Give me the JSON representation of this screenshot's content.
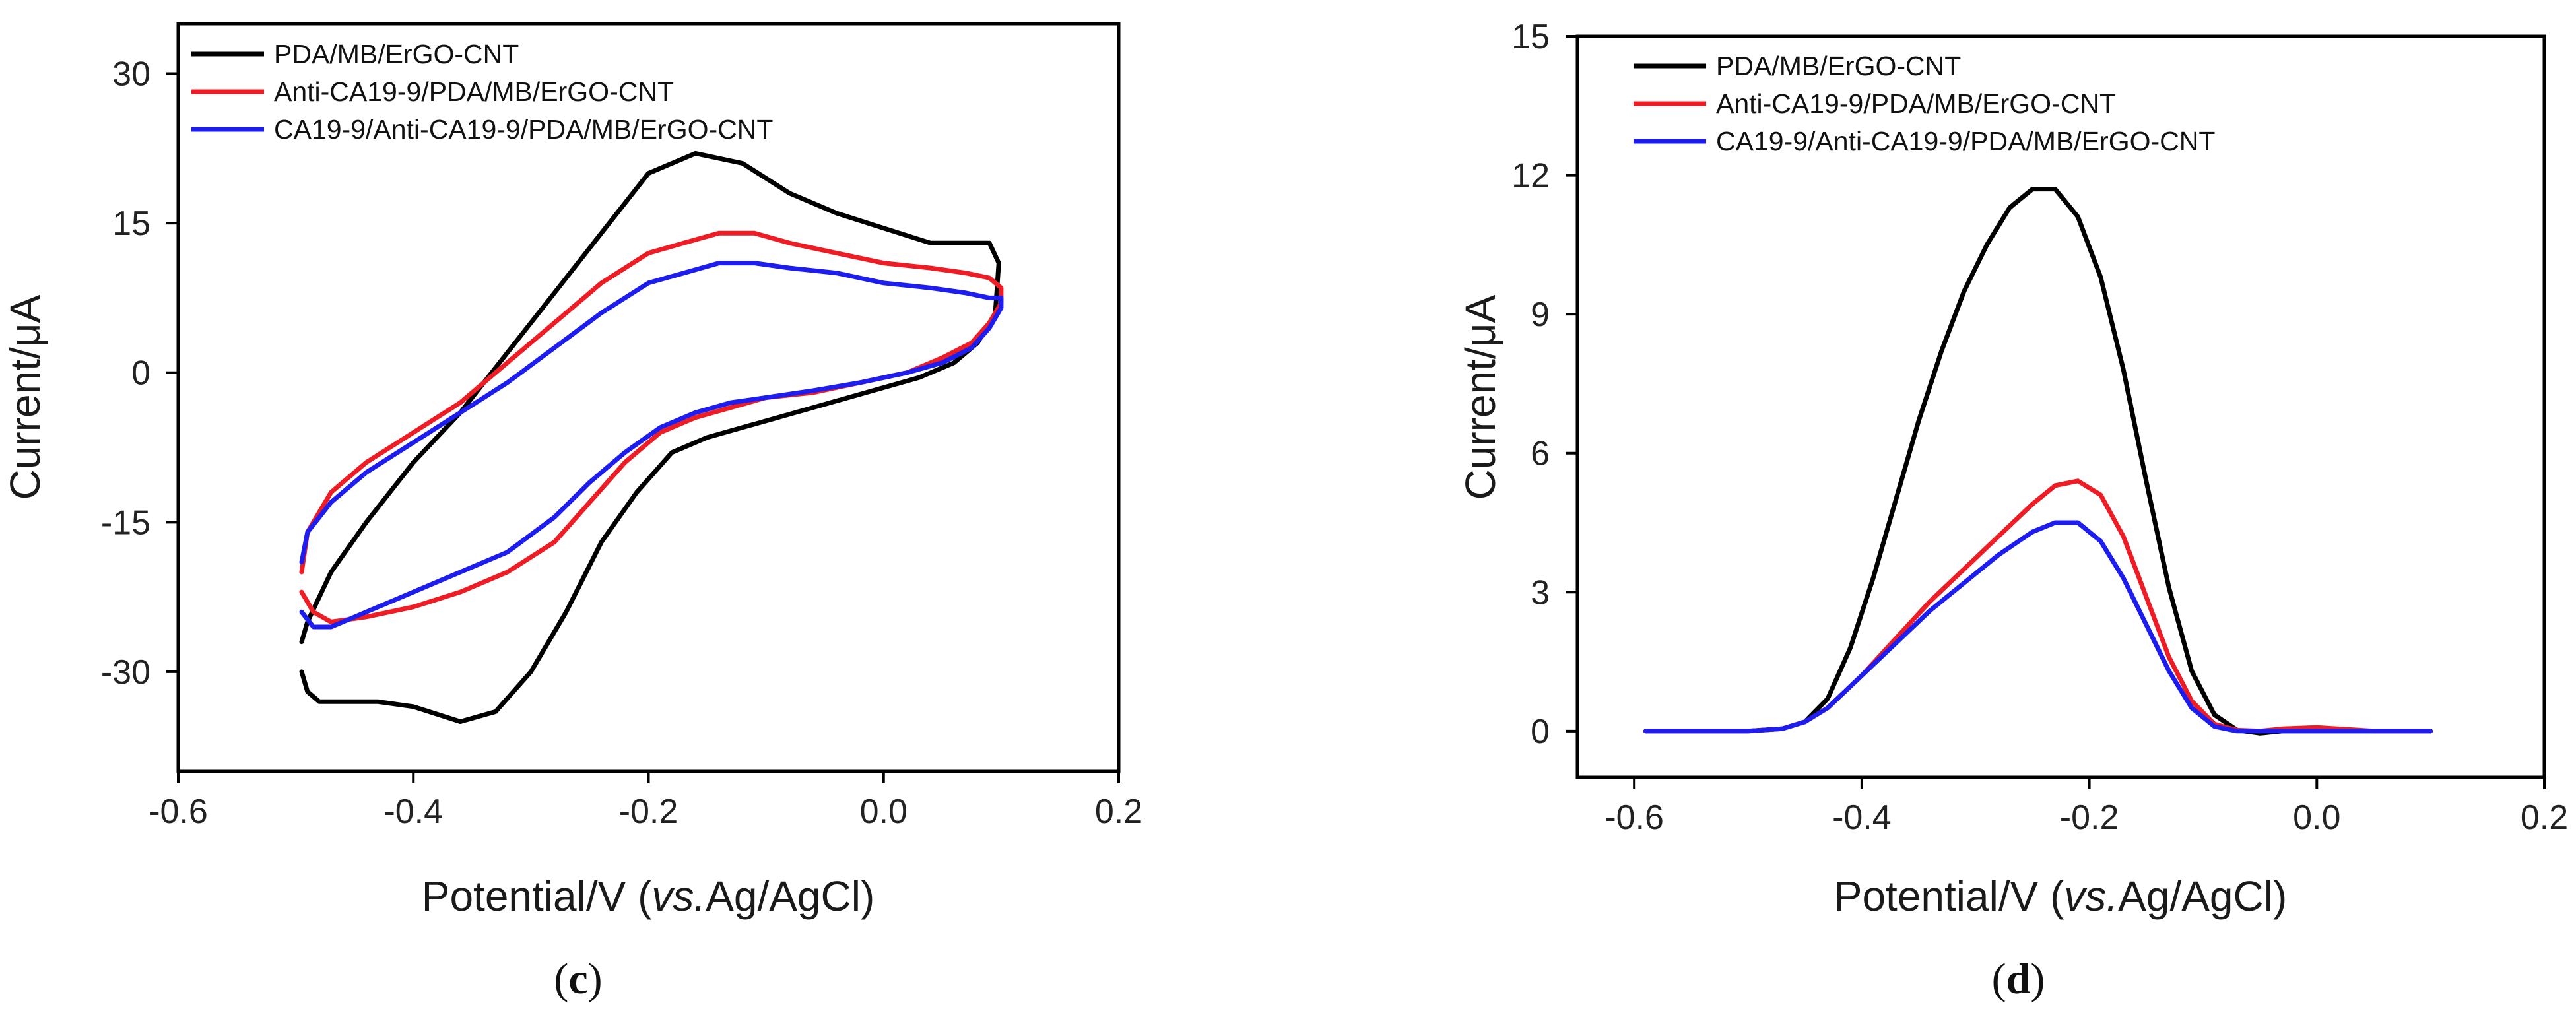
{
  "chart_data": [
    {
      "type": "line",
      "panel_label": "c",
      "title": "",
      "xlabel_main": "Potential/V (",
      "xlabel_italic": "vs.",
      "xlabel_rest": "Ag/AgCl)",
      "ylabel": "Current/μA",
      "xlim": [
        -0.6,
        0.2
      ],
      "ylim": [
        -40,
        35
      ],
      "xticks": [
        -0.6,
        -0.4,
        -0.2,
        0.0,
        0.2
      ],
      "xtick_labels": [
        "-0.6",
        "-0.4",
        "-0.2",
        "0.0",
        "0.2"
      ],
      "yticks": [
        30,
        15,
        0,
        -15,
        -30
      ],
      "ytick_labels": [
        "30",
        "15",
        "0",
        "-15",
        "-30"
      ],
      "legend_position": "top-left",
      "series": [
        {
          "name": "PDA/MB/ErGO-CNT",
          "color": "#000000",
          "x": [
            -0.495,
            -0.49,
            -0.48,
            -0.46,
            -0.43,
            -0.4,
            -0.36,
            -0.33,
            -0.3,
            -0.27,
            -0.24,
            -0.21,
            -0.18,
            -0.15,
            -0.12,
            -0.09,
            -0.06,
            -0.03,
            0.0,
            0.03,
            0.06,
            0.08,
            0.095,
            0.098,
            0.09,
            0.07,
            0.04,
            0.0,
            -0.04,
            -0.08,
            -0.12,
            -0.16,
            -0.2,
            -0.24,
            -0.28,
            -0.32,
            -0.36,
            -0.4,
            -0.44,
            -0.47,
            -0.49,
            -0.495
          ],
          "y": [
            -30,
            -32,
            -33,
            -33,
            -33,
            -33.5,
            -35,
            -34,
            -30,
            -24,
            -17,
            -12,
            -8,
            -6.5,
            -5.5,
            -4.5,
            -3.5,
            -2.5,
            -1.5,
            -0.5,
            1,
            3,
            6,
            11,
            13,
            13,
            13,
            14.5,
            16,
            18,
            21,
            22,
            20,
            14,
            8,
            2,
            -4,
            -9,
            -15,
            -20,
            -25,
            -27
          ]
        },
        {
          "name": "Anti-CA19-9/PDA/MB/ErGO-CNT",
          "color": "#ee1c24",
          "x": [
            -0.495,
            -0.485,
            -0.47,
            -0.44,
            -0.4,
            -0.36,
            -0.32,
            -0.28,
            -0.25,
            -0.22,
            -0.19,
            -0.16,
            -0.13,
            -0.1,
            -0.06,
            -0.02,
            0.02,
            0.05,
            0.075,
            0.09,
            0.1,
            0.1,
            0.09,
            0.07,
            0.04,
            0.0,
            -0.04,
            -0.08,
            -0.11,
            -0.14,
            -0.17,
            -0.2,
            -0.24,
            -0.28,
            -0.32,
            -0.36,
            -0.4,
            -0.44,
            -0.47,
            -0.49,
            -0.495
          ],
          "y": [
            -22,
            -24,
            -25,
            -24.5,
            -23.5,
            -22,
            -20,
            -17,
            -13,
            -9,
            -6,
            -4.5,
            -3.5,
            -2.5,
            -2,
            -1,
            0,
            1.5,
            3,
            5,
            7,
            8.5,
            9.5,
            10,
            10.5,
            11,
            12,
            13,
            14,
            14,
            13,
            12,
            9,
            5,
            1,
            -3,
            -6,
            -9,
            -12,
            -16,
            -20
          ]
        },
        {
          "name": "CA19-9/Anti-CA19-9/PDA/MB/ErGO-CNT",
          "color": "#1d1df0",
          "x": [
            -0.495,
            -0.485,
            -0.47,
            -0.44,
            -0.4,
            -0.36,
            -0.32,
            -0.28,
            -0.25,
            -0.22,
            -0.19,
            -0.16,
            -0.13,
            -0.1,
            -0.06,
            -0.02,
            0.02,
            0.05,
            0.075,
            0.09,
            0.1,
            0.1,
            0.09,
            0.07,
            0.04,
            0.0,
            -0.04,
            -0.08,
            -0.11,
            -0.14,
            -0.17,
            -0.2,
            -0.24,
            -0.28,
            -0.32,
            -0.36,
            -0.4,
            -0.44,
            -0.47,
            -0.49,
            -0.495
          ],
          "y": [
            -24,
            -25.5,
            -25.5,
            -24,
            -22,
            -20,
            -18,
            -14.5,
            -11,
            -8,
            -5.5,
            -4,
            -3,
            -2.5,
            -1.8,
            -1,
            0,
            1,
            2.5,
            4.5,
            6.5,
            7.5,
            7.5,
            8,
            8.5,
            9,
            10,
            10.5,
            11,
            11,
            10,
            9,
            6,
            2.5,
            -1,
            -4,
            -7,
            -10,
            -13,
            -16,
            -19
          ]
        }
      ]
    },
    {
      "type": "line",
      "panel_label": "d",
      "title": "",
      "xlabel_main": "Potential/V (",
      "xlabel_italic": "vs.",
      "xlabel_rest": "Ag/AgCl)",
      "ylabel": "Current/μA",
      "xlim": [
        -0.65,
        0.2
      ],
      "ylim": [
        -1,
        15
      ],
      "xticks": [
        -0.6,
        -0.4,
        -0.2,
        0.0,
        0.2
      ],
      "xtick_labels": [
        "-0.6",
        "-0.4",
        "-0.2",
        "0.0",
        "0.2"
      ],
      "yticks": [
        15,
        12,
        9,
        6,
        3,
        0
      ],
      "ytick_labels": [
        "15",
        "12",
        "9",
        "6",
        "3",
        "0"
      ],
      "legend_position": "top-left",
      "series": [
        {
          "name": "PDA/MB/ErGO-CNT",
          "color": "#000000",
          "x": [
            -0.59,
            -0.55,
            -0.5,
            -0.47,
            -0.45,
            -0.43,
            -0.41,
            -0.39,
            -0.37,
            -0.35,
            -0.33,
            -0.31,
            -0.29,
            -0.27,
            -0.25,
            -0.23,
            -0.21,
            -0.19,
            -0.17,
            -0.15,
            -0.13,
            -0.11,
            -0.09,
            -0.07,
            -0.05,
            -0.03,
            0.0,
            0.05,
            0.1
          ],
          "y": [
            0,
            0,
            0,
            0.05,
            0.2,
            0.7,
            1.8,
            3.3,
            5.0,
            6.7,
            8.2,
            9.5,
            10.5,
            11.3,
            11.7,
            11.7,
            11.1,
            9.8,
            7.8,
            5.4,
            3.1,
            1.3,
            0.35,
            0.02,
            -0.05,
            0,
            0,
            0,
            0
          ]
        },
        {
          "name": "Anti-CA19-9/PDA/MB/ErGO-CNT",
          "color": "#ee1c24",
          "x": [
            -0.59,
            -0.55,
            -0.5,
            -0.47,
            -0.45,
            -0.43,
            -0.4,
            -0.37,
            -0.34,
            -0.31,
            -0.28,
            -0.25,
            -0.23,
            -0.21,
            -0.19,
            -0.17,
            -0.15,
            -0.13,
            -0.11,
            -0.09,
            -0.07,
            -0.05,
            -0.03,
            0.0,
            0.05,
            0.1
          ],
          "y": [
            0,
            0,
            0,
            0.05,
            0.2,
            0.5,
            1.2,
            2.0,
            2.8,
            3.5,
            4.2,
            4.9,
            5.3,
            5.4,
            5.1,
            4.2,
            2.9,
            1.6,
            0.65,
            0.15,
            0.02,
            0,
            0.05,
            0.08,
            0,
            0
          ]
        },
        {
          "name": "CA19-9/Anti-CA19-9/PDA/MB/ErGO-CNT",
          "color": "#1d1df0",
          "x": [
            -0.59,
            -0.55,
            -0.5,
            -0.47,
            -0.45,
            -0.43,
            -0.4,
            -0.37,
            -0.34,
            -0.31,
            -0.28,
            -0.25,
            -0.23,
            -0.21,
            -0.19,
            -0.17,
            -0.15,
            -0.13,
            -0.11,
            -0.09,
            -0.07,
            -0.05,
            -0.03,
            0.0,
            0.05,
            0.1
          ],
          "y": [
            0,
            0,
            0,
            0.05,
            0.2,
            0.5,
            1.2,
            1.9,
            2.6,
            3.2,
            3.8,
            4.3,
            4.5,
            4.5,
            4.1,
            3.3,
            2.3,
            1.3,
            0.5,
            0.1,
            0,
            0,
            0,
            0,
            0,
            0
          ]
        }
      ]
    }
  ]
}
